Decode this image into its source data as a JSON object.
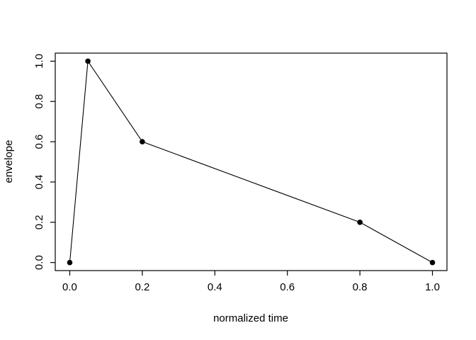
{
  "chart_data": {
    "type": "line",
    "x": [
      0.0,
      0.05,
      0.2,
      0.8,
      1.0
    ],
    "y": [
      0.0,
      1.0,
      0.6,
      0.2,
      0.0
    ],
    "title": "",
    "xlabel": "normalized time",
    "ylabel": "envelope",
    "xlim": [
      0,
      1
    ],
    "ylim": [
      0,
      1
    ],
    "x_ticks": [
      0.0,
      0.2,
      0.4,
      0.6,
      0.8,
      1.0
    ],
    "y_ticks": [
      0.0,
      0.2,
      0.4,
      0.6,
      0.8,
      1.0
    ],
    "x_tick_labels": [
      "0.0",
      "0.2",
      "0.4",
      "0.6",
      "0.8",
      "1.0"
    ],
    "y_tick_labels": [
      "0.0",
      "0.2",
      "0.4",
      "0.6",
      "0.8",
      "1.0"
    ],
    "grid": false,
    "legend": null,
    "marker": "filled-circle",
    "line_color": "#000000",
    "point_color": "#000000",
    "axis_color": "#000000",
    "background_color": "#ffffff"
  }
}
